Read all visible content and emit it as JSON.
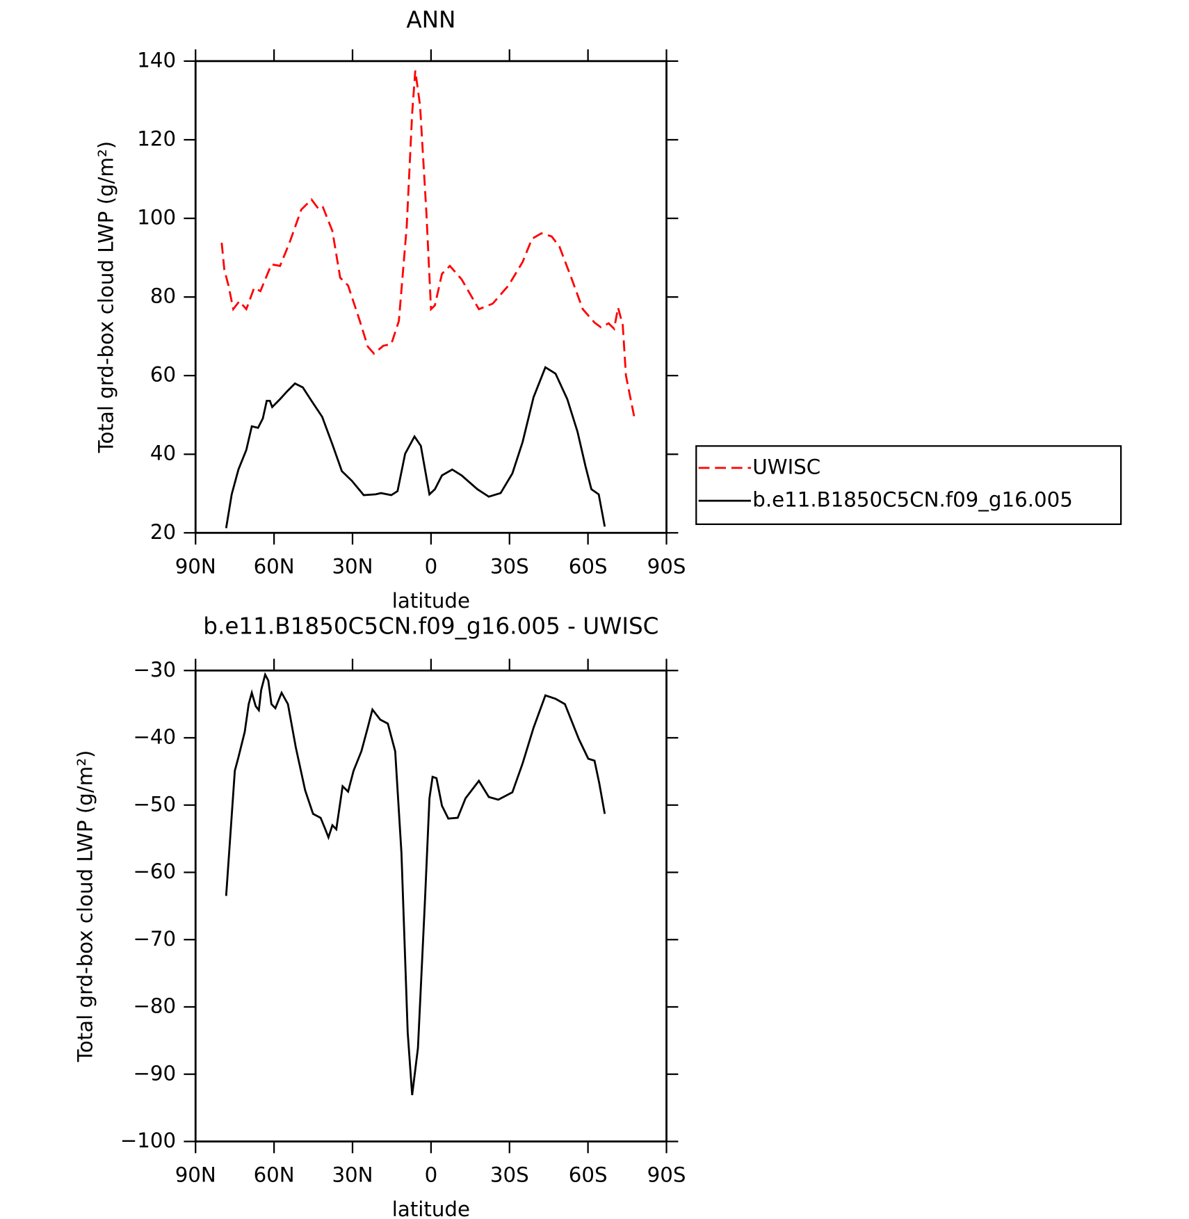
{
  "chart_data": [
    {
      "type": "line",
      "title": "ANN",
      "xlabel": "latitude",
      "ylabel": "Total grd-box cloud LWP (g/m²)",
      "xlim": [
        90,
        -90
      ],
      "xticks": [
        {
          "value": 90,
          "label": "90N"
        },
        {
          "value": 60,
          "label": "60N"
        },
        {
          "value": 30,
          "label": "30N"
        },
        0,
        {
          "value": -30,
          "label": "30S"
        },
        {
          "value": -60,
          "label": "60S"
        },
        {
          "value": -90,
          "label": "90S"
        }
      ],
      "ylim": [
        20,
        140
      ],
      "yticks": [
        20,
        40,
        60,
        80,
        100,
        120,
        140
      ],
      "legend": "right",
      "series": [
        {
          "name": "UWISC",
          "color": "#ff0000",
          "linestyle": "dashed",
          "x": [
            80,
            79,
            77.4,
            75.6,
            73.3,
            70.6,
            67.6,
            65.2,
            61,
            57.7,
            54.1,
            49.6,
            45.7,
            42.8,
            41.3,
            37.7,
            34.7,
            31.7,
            27.2,
            24.2,
            21.8,
            18.2,
            15.2,
            12.3,
            9.3,
            7.2,
            6,
            4.2,
            1.8,
            0,
            -1.5,
            -4.2,
            -7.2,
            -11.7,
            -18.3,
            -23.6,
            -29.6,
            -35,
            -38.6,
            -42.2,
            -46.1,
            -49.1,
            -53.6,
            -58,
            -62.5,
            -64.9,
            -67.9,
            -70,
            -71.5,
            -73.3,
            -74.5,
            -76,
            -77.8
          ],
          "values": [
            93.8,
            86.9,
            82.9,
            76.9,
            78.9,
            76.9,
            82.3,
            81.5,
            88.3,
            87.9,
            93.8,
            102.2,
            104.8,
            102.2,
            102.8,
            96.8,
            84.9,
            82.9,
            73.9,
            67.4,
            65.6,
            67.6,
            68,
            73.9,
            97.8,
            126.7,
            137.6,
            128.7,
            101.8,
            76.9,
            77.9,
            85.9,
            87.9,
            84.5,
            76.9,
            78.3,
            82.9,
            88.9,
            94.8,
            96.2,
            95.4,
            92.8,
            84.9,
            76.9,
            73.5,
            72.3,
            73.3,
            71.9,
            77.3,
            72.9,
            60,
            55,
            49.1
          ]
        },
        {
          "name": "b.e11.B1850C5CN.f09_g16.005",
          "color": "#000000",
          "linestyle": "solid",
          "x": [
            78.3,
            76.2,
            73.6,
            70.6,
            68.5,
            66.1,
            64.3,
            62.8,
            61.6,
            60.7,
            57.7,
            55,
            52,
            49,
            45.7,
            41.6,
            37.7,
            34.1,
            30.2,
            25.7,
            21.2,
            19.1,
            15.2,
            12.8,
            9.9,
            6.3,
            3.9,
            0.6,
            -1.5,
            -4.2,
            -8.1,
            -11.7,
            -17.7,
            -22.1,
            -26.6,
            -31.1,
            -35,
            -39.2,
            -43.7,
            -47.6,
            -52.1,
            -56,
            -59,
            -61.3,
            -64.1,
            -66.4
          ],
          "values": [
            21.2,
            29.8,
            36.1,
            41.1,
            47.1,
            46.7,
            49.1,
            53.6,
            53.6,
            52,
            54,
            56,
            58,
            57,
            53.6,
            49.5,
            42.5,
            35.7,
            33.2,
            29.6,
            29.8,
            30.1,
            29.6,
            30.6,
            40.1,
            44.5,
            42.1,
            29.8,
            31.1,
            34.6,
            36.1,
            34.6,
            31.1,
            29.2,
            30.1,
            35.1,
            43.1,
            54.5,
            62.1,
            60.5,
            54,
            45.7,
            37.1,
            31.1,
            29.8,
            21.6
          ]
        }
      ]
    },
    {
      "type": "line",
      "title": "b.e11.B1850C5CN.f09_g16.005 - UWISC",
      "xlabel": "latitude",
      "ylabel": "Total grd-box cloud LWP (g/m²)",
      "xlim": [
        90,
        -90
      ],
      "xticks": [
        {
          "value": 90,
          "label": "90N"
        },
        {
          "value": 60,
          "label": "60N"
        },
        {
          "value": 30,
          "label": "30N"
        },
        0,
        {
          "value": -30,
          "label": "30S"
        },
        {
          "value": -60,
          "label": "60S"
        },
        {
          "value": -90,
          "label": "90S"
        }
      ],
      "ylim": [
        -100,
        -30
      ],
      "yticks": [
        {
          "value": -100,
          "label": "−100"
        },
        {
          "value": -90,
          "label": "−90"
        },
        {
          "value": -80,
          "label": "−80"
        },
        {
          "value": -70,
          "label": "−70"
        },
        {
          "value": -60,
          "label": "−60"
        },
        {
          "value": -50,
          "label": "−50"
        },
        {
          "value": -40,
          "label": "−40"
        },
        {
          "value": -30,
          "label": "−30"
        }
      ],
      "series": [
        {
          "color": "#000000",
          "linestyle": "solid",
          "x": [
            78.3,
            75,
            73.6,
            71.2,
            69.7,
            68.5,
            67,
            65.8,
            64.9,
            63.4,
            62.2,
            61,
            59.5,
            57.1,
            54.7,
            51.7,
            48.1,
            45.1,
            42.2,
            40.4,
            39.2,
            37.7,
            36.2,
            33.8,
            31.7,
            29.6,
            26.6,
            24.2,
            22.4,
            19.4,
            16.5,
            13.7,
            11.3,
            8.9,
            7.2,
            5,
            2.3,
            0.6,
            -0.6,
            -2.1,
            -4.2,
            -6.6,
            -10.2,
            -13.2,
            -18.3,
            -22.1,
            -25.7,
            -31.1,
            -35,
            -39.2,
            -43.7,
            -47.6,
            -51.2,
            -56.5,
            -60.1,
            -62.5,
            -64.3,
            -66.4
          ],
          "values": [
            -63.5,
            -44.9,
            -42.9,
            -39.1,
            -35,
            -33.3,
            -35.3,
            -35.9,
            -32.9,
            -30.6,
            -31.5,
            -35,
            -35.6,
            -33.3,
            -35,
            -41.4,
            -47.8,
            -51.3,
            -51.9,
            -53.6,
            -54.8,
            -53,
            -53.6,
            -47.2,
            -48,
            -44.9,
            -42,
            -38.5,
            -35.8,
            -37.3,
            -37.9,
            -42,
            -57.1,
            -83.8,
            -93.1,
            -86.1,
            -64.1,
            -49,
            -45.8,
            -46,
            -50.1,
            -52,
            -51.9,
            -49,
            -46.4,
            -48.8,
            -49.2,
            -48.1,
            -43.8,
            -38.5,
            -33.7,
            -34.2,
            -35,
            -40.2,
            -43.1,
            -43.4,
            -46.7,
            -51.3
          ]
        }
      ]
    }
  ]
}
